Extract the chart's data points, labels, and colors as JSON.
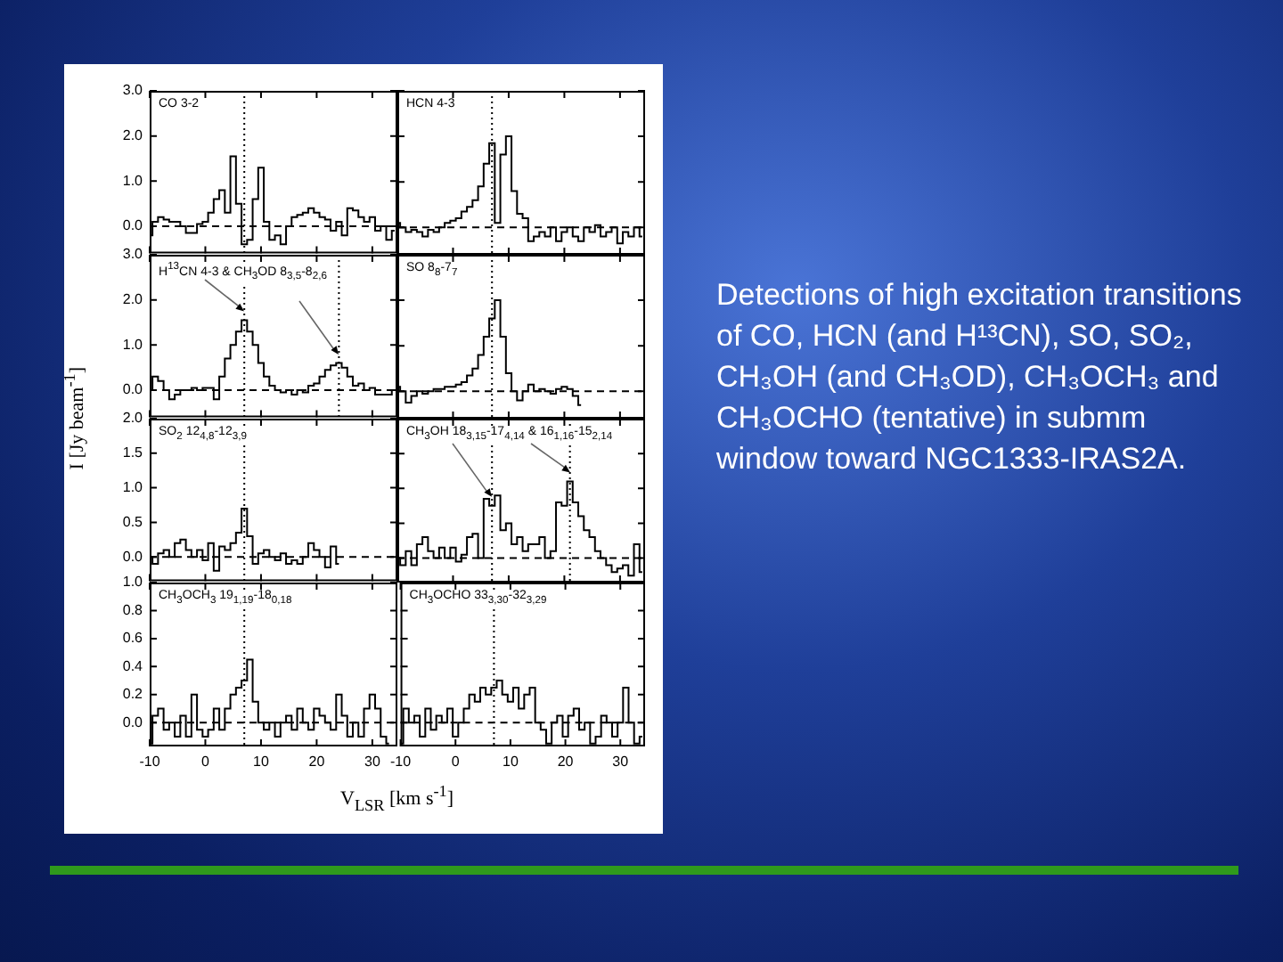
{
  "chart_data": [
    {
      "type": "step",
      "title": "CO 3-2",
      "color": "#000000",
      "tick_labels": "y",
      "xlim": [
        -10,
        34.5
      ],
      "xticks": [
        -10,
        0,
        10,
        20,
        30
      ],
      "ylim": [
        -0.6,
        3.0
      ],
      "yticks": [
        {
          "value": 0,
          "label": "0.0"
        },
        {
          "value": 1,
          "label": "1.0"
        },
        {
          "value": 2,
          "label": "2.0"
        },
        {
          "value": 3,
          "label": "3.0"
        }
      ],
      "ref_lines": [
        {
          "axis": "x",
          "value": 7,
          "line_style": "dotted",
          "color": "#000000"
        },
        {
          "axis": "y",
          "value": 0,
          "line_style": "dashed",
          "color": "#000000"
        }
      ],
      "x": [
        -10,
        -9,
        -8,
        -7,
        -6,
        -5,
        -4,
        -3,
        -2,
        -1,
        0,
        1,
        2,
        3,
        4,
        5,
        6,
        7,
        8,
        9,
        10,
        11,
        12,
        13,
        14,
        15,
        16,
        17,
        18,
        19,
        20,
        21,
        22,
        23,
        24,
        25,
        26,
        27,
        28,
        29,
        30,
        31,
        32,
        33,
        34
      ],
      "values": [
        -0.2,
        0.1,
        0.2,
        0.15,
        0.1,
        0.1,
        0.0,
        -0.15,
        -0.15,
        0.05,
        0.1,
        0.3,
        0.6,
        0.8,
        0.3,
        1.55,
        0.5,
        -0.4,
        -0.3,
        0.6,
        1.3,
        0.1,
        -0.3,
        -0.2,
        -0.4,
        0.0,
        0.2,
        0.25,
        0.3,
        0.4,
        0.3,
        0.2,
        0.15,
        -0.1,
        0.1,
        -0.2,
        0.4,
        0.35,
        0.2,
        0.1,
        0.2,
        -0.1,
        0.0,
        -0.3,
        -0.1
      ]
    },
    {
      "type": "step",
      "title": "HCN 4-3",
      "color": "#000000",
      "tick_labels": false,
      "xlim": [
        -10,
        34.5
      ],
      "xticks": [
        -10,
        0,
        10,
        20,
        30
      ],
      "ylim": [
        -0.6,
        3.0
      ],
      "yticks": [
        {
          "value": 0,
          "label": null
        },
        {
          "value": 1,
          "label": null
        },
        {
          "value": 2,
          "label": null
        },
        {
          "value": 3,
          "label": null
        }
      ],
      "ref_lines": [
        {
          "axis": "x",
          "value": 7,
          "line_style": "dotted",
          "color": "#000000"
        },
        {
          "axis": "y",
          "value": 0,
          "line_style": "dashed",
          "color": "#000000"
        }
      ],
      "x": [
        -10,
        -9,
        -8,
        -7,
        -6,
        -5,
        -4,
        -3,
        -2,
        -1,
        0,
        1,
        2,
        3,
        4,
        5,
        6,
        7,
        8,
        9,
        10,
        11,
        12,
        13,
        14,
        15,
        16,
        17,
        18,
        19,
        20,
        21,
        22,
        23,
        24,
        25,
        26,
        27,
        28,
        29,
        30,
        31,
        32,
        33,
        34
      ],
      "values": [
        0.1,
        0.0,
        -0.1,
        -0.05,
        -0.1,
        -0.2,
        -0.05,
        -0.1,
        0.0,
        0.1,
        0.15,
        0.2,
        0.35,
        0.45,
        0.6,
        0.9,
        1.4,
        1.85,
        0.1,
        1.6,
        2.0,
        0.8,
        0.3,
        0.2,
        -0.3,
        -0.2,
        -0.1,
        -0.2,
        0.0,
        -0.3,
        -0.1,
        0.0,
        -0.2,
        -0.3,
        0.0,
        -0.1,
        0.05,
        -0.2,
        -0.1,
        0.0,
        -0.35,
        -0.1,
        -0.2,
        0.0,
        -0.2
      ]
    },
    {
      "type": "step",
      "title": "H$^{13}$CN 4-3 & CH$_{3}$OD 8$_{3,5}$-8$_{2,6}$",
      "color": "#000000",
      "tick_labels": "y",
      "xlim": [
        -10,
        34.5
      ],
      "xticks": [
        -10,
        0,
        10,
        20,
        30
      ],
      "ylim": [
        -0.6,
        3.0
      ],
      "yticks": [
        {
          "value": 0,
          "label": "0.0"
        },
        {
          "value": 1,
          "label": "1.0"
        },
        {
          "value": 2,
          "label": "2.0"
        },
        {
          "value": 3,
          "label": "3.0"
        }
      ],
      "ref_lines": [
        {
          "axis": "x",
          "value": 7,
          "line_style": "dotted",
          "color": "#000000"
        },
        {
          "axis": "x",
          "value": 24,
          "line_style": "dotted",
          "color": "#000000"
        },
        {
          "axis": "y",
          "value": 0,
          "line_style": "dashed",
          "color": "#000000"
        }
      ],
      "x": [
        -10,
        -9,
        -8,
        -7,
        -6,
        -5,
        -4,
        -3,
        -2,
        -1,
        0,
        1,
        2,
        3,
        4,
        5,
        6,
        7,
        8,
        9,
        10,
        11,
        12,
        13,
        14,
        15,
        16,
        17,
        18,
        19,
        20,
        21,
        22,
        23,
        24,
        25,
        26,
        27,
        28,
        29,
        30,
        31,
        32,
        33,
        34
      ],
      "values": [
        0.0,
        0.3,
        0.2,
        0.0,
        -0.2,
        -0.1,
        0.0,
        0.0,
        0.05,
        0.0,
        0.05,
        0.05,
        -0.2,
        0.3,
        0.7,
        1.0,
        1.3,
        1.55,
        1.3,
        1.0,
        0.6,
        0.3,
        0.1,
        0.0,
        -0.05,
        0.0,
        -0.1,
        0.0,
        -0.05,
        0.1,
        0.15,
        0.3,
        0.45,
        0.55,
        0.6,
        0.5,
        0.3,
        0.1,
        0.15,
        0.0,
        0.05,
        -0.1,
        -0.1,
        -0.1,
        0.0
      ]
    },
    {
      "type": "step",
      "title": "SO 8$_{8}$-7$_{7}$",
      "color": "#000000",
      "tick_labels": false,
      "xlim": [
        -10,
        34.5
      ],
      "xticks": [
        -10,
        0,
        10,
        20,
        30
      ],
      "ylim": [
        -0.6,
        3.0
      ],
      "yticks": [
        {
          "value": 0,
          "label": null
        },
        {
          "value": 1,
          "label": null
        },
        {
          "value": 2,
          "label": null
        },
        {
          "value": 3,
          "label": null
        }
      ],
      "ref_lines": [
        {
          "axis": "x",
          "value": 7,
          "line_style": "dotted",
          "color": "#000000"
        },
        {
          "axis": "y",
          "value": 0,
          "line_style": "dashed",
          "color": "#000000"
        }
      ],
      "x": [
        -10,
        -9,
        -8,
        -7,
        -6,
        -5,
        -4,
        -3,
        -2,
        -1,
        0,
        1,
        2,
        3,
        4,
        5,
        6,
        7,
        8,
        9,
        10,
        11,
        12,
        13,
        14,
        15,
        16,
        17,
        18,
        19,
        20,
        21,
        22,
        23
      ],
      "values": [
        0.1,
        0.0,
        -0.25,
        -0.1,
        0.0,
        -0.05,
        0.0,
        0.05,
        0.05,
        0.1,
        0.1,
        0.15,
        0.2,
        0.35,
        0.5,
        0.8,
        1.2,
        1.6,
        2.0,
        1.2,
        0.4,
        0.0,
        -0.2,
        0.0,
        0.15,
        0.0,
        0.05,
        0.0,
        -0.05,
        0.05,
        0.1,
        0.05,
        -0.1,
        -0.3
      ]
    },
    {
      "type": "step",
      "title": "SO$_{2}$ 12$_{4,8}$-12$_{3,9}$",
      "ylabel": "I [Jy beam$^{-1}$]",
      "color": "#000000",
      "tick_labels": "y",
      "xlim": [
        -10,
        34.5
      ],
      "xticks": [
        -10,
        0,
        10,
        20,
        30
      ],
      "ylim": [
        -0.35,
        2.0
      ],
      "yticks": [
        {
          "value": 0,
          "label": "0.0"
        },
        {
          "value": 0.5,
          "label": "0.5"
        },
        {
          "value": 1,
          "label": "1.0"
        },
        {
          "value": 1.5,
          "label": "1.5"
        },
        {
          "value": 2,
          "label": "2.0"
        }
      ],
      "ref_lines": [
        {
          "axis": "x",
          "value": 7,
          "line_style": "dotted",
          "color": "#000000"
        },
        {
          "axis": "y",
          "value": 0,
          "line_style": "dashed",
          "color": "#000000"
        }
      ],
      "x": [
        -10,
        -9,
        -8,
        -7,
        -6,
        -5,
        -4,
        -3,
        -2,
        -1,
        0,
        1,
        2,
        3,
        4,
        5,
        6,
        7,
        8,
        9,
        10,
        11,
        12,
        13,
        14,
        15,
        16,
        17,
        18,
        19,
        20,
        21,
        22,
        23,
        24
      ],
      "values": [
        0.0,
        -0.1,
        0.05,
        0.1,
        0.0,
        0.2,
        0.25,
        0.1,
        0.0,
        0.1,
        -0.05,
        0.2,
        -0.2,
        0.15,
        0.1,
        0.2,
        0.35,
        0.7,
        0.3,
        -0.1,
        0.05,
        0.1,
        0.0,
        -0.05,
        0.05,
        -0.1,
        -0.05,
        -0.1,
        0.0,
        0.2,
        0.1,
        0.0,
        -0.15,
        0.15,
        -0.1
      ]
    },
    {
      "type": "step",
      "title": "CH$_{3}$OH 18$_{3,15}$-17$_{4,14}$ & 16$_{1,16}$-15$_{2,14}$",
      "color": "#000000",
      "tick_labels": false,
      "xlim": [
        -10,
        34.5
      ],
      "xticks": [
        -10,
        0,
        10,
        20,
        30
      ],
      "ylim": [
        -0.35,
        2.0
      ],
      "yticks": [
        {
          "value": 0,
          "label": null
        },
        {
          "value": 0.5,
          "label": null
        },
        {
          "value": 1,
          "label": null
        },
        {
          "value": 1.5,
          "label": null
        },
        {
          "value": 2,
          "label": null
        }
      ],
      "ref_lines": [
        {
          "axis": "x",
          "value": 7,
          "line_style": "dotted",
          "color": "#000000"
        },
        {
          "axis": "x",
          "value": 21,
          "line_style": "dotted",
          "color": "#000000"
        },
        {
          "axis": "y",
          "value": 0,
          "line_style": "dashed",
          "color": "#000000"
        }
      ],
      "x": [
        -10,
        -9,
        -8,
        -7,
        -6,
        -5,
        -4,
        -3,
        -2,
        -1,
        0,
        1,
        2,
        3,
        4,
        5,
        6,
        7,
        8,
        9,
        10,
        11,
        12,
        13,
        14,
        15,
        16,
        17,
        18,
        19,
        20,
        21,
        22,
        23,
        24,
        25,
        26,
        27,
        28,
        29,
        30,
        31,
        32,
        33,
        34
      ],
      "values": [
        0.0,
        -0.1,
        0.1,
        -0.1,
        0.2,
        0.3,
        0.1,
        0.0,
        0.15,
        0.0,
        0.15,
        -0.05,
        0.05,
        0.3,
        0.35,
        0.0,
        0.85,
        0.75,
        0.9,
        0.4,
        0.5,
        0.2,
        0.3,
        0.1,
        0.2,
        0.2,
        0.3,
        0.0,
        0.1,
        0.8,
        0.75,
        1.1,
        0.8,
        0.6,
        0.4,
        0.3,
        0.1,
        0.0,
        -0.1,
        -0.2,
        -0.15,
        -0.1,
        -0.25,
        0.2,
        -0.2
      ]
    },
    {
      "type": "step",
      "title": "CH$_{3}$OCH$_{3}$ 19$_{1,19}$-18$_{0,18}$",
      "xlabel": "V$_{LSR}$ [km s$^{-1}$]",
      "color": "#000000",
      "xlim": [
        -10,
        34.5
      ],
      "xticks": [
        -10,
        0,
        10,
        20,
        30
      ],
      "ylim": [
        -0.17,
        1.0
      ],
      "yticks": [
        {
          "value": 0,
          "label": "0.0"
        },
        {
          "value": 0.2,
          "label": "0.2"
        },
        {
          "value": 0.4,
          "label": "0.4"
        },
        {
          "value": 0.6,
          "label": "0.6"
        },
        {
          "value": 0.8,
          "label": "0.8"
        },
        {
          "value": 1,
          "label": "1.0"
        }
      ],
      "ref_lines": [
        {
          "axis": "x",
          "value": 7,
          "line_style": "dotted",
          "color": "#000000"
        },
        {
          "axis": "y",
          "value": 0,
          "line_style": "dashed",
          "color": "#000000"
        }
      ],
      "x": [
        -10,
        -9,
        -8,
        -7,
        -6,
        -5,
        -4,
        -3,
        -2,
        -1,
        0,
        1,
        2,
        3,
        4,
        5,
        6,
        7,
        8,
        9,
        10,
        11,
        12,
        13,
        14,
        15,
        16,
        17,
        18,
        19,
        20,
        21,
        22,
        23,
        24,
        25,
        26,
        27,
        28,
        29,
        30,
        31,
        32,
        33
      ],
      "values": [
        -0.15,
        0.05,
        0.1,
        -0.05,
        0.0,
        -0.1,
        0.05,
        -0.1,
        0.2,
        -0.05,
        -0.1,
        -0.05,
        0.1,
        -0.05,
        0.1,
        0.2,
        0.25,
        0.3,
        0.45,
        0.15,
        0.0,
        -0.05,
        0.0,
        -0.1,
        0.0,
        0.05,
        -0.05,
        0.1,
        0.0,
        -0.05,
        0.1,
        0.05,
        0.0,
        -0.05,
        0.2,
        0.05,
        -0.1,
        0.0,
        -0.1,
        0.1,
        0.2,
        0.1,
        -0.1,
        -0.15
      ]
    },
    {
      "type": "step",
      "title": "CH$_{3}$OCHO 33$_{3,30}$-32$_{3,29}$",
      "color": "#000000",
      "tick_labels": "x",
      "xlim": [
        -10,
        34.5
      ],
      "xticks": [
        -10,
        0,
        10,
        20,
        30
      ],
      "ylim": [
        -0.17,
        1.0
      ],
      "yticks": [
        {
          "value": 0,
          "label": null
        },
        {
          "value": 0.2,
          "label": null
        },
        {
          "value": 0.4,
          "label": null
        },
        {
          "value": 0.6,
          "label": null
        },
        {
          "value": 0.8,
          "label": null
        },
        {
          "value": 1,
          "label": null
        }
      ],
      "ref_lines": [
        {
          "axis": "x",
          "value": 7,
          "line_style": "dotted",
          "color": "#000000"
        },
        {
          "axis": "y",
          "value": 0,
          "line_style": "dashed",
          "color": "#000000"
        }
      ],
      "x": [
        -10,
        -9,
        -8,
        -7,
        -6,
        -5,
        -4,
        -3,
        -2,
        -1,
        0,
        1,
        2,
        3,
        4,
        5,
        6,
        7,
        8,
        9,
        10,
        11,
        12,
        13,
        14,
        15,
        16,
        17,
        18,
        19,
        20,
        21,
        22,
        23,
        24,
        25,
        26,
        27,
        28,
        29,
        30,
        31,
        32,
        33,
        34
      ],
      "values": [
        -0.15,
        0.1,
        0.0,
        0.05,
        -0.1,
        0.1,
        -0.05,
        0.05,
        0.0,
        0.1,
        -0.1,
        0.0,
        0.1,
        0.2,
        0.15,
        0.25,
        0.2,
        0.25,
        0.3,
        0.2,
        0.15,
        0.25,
        0.1,
        0.2,
        0.25,
        0.0,
        -0.05,
        -0.15,
        0.0,
        0.05,
        -0.1,
        0.05,
        0.1,
        -0.05,
        0.0,
        -0.15,
        -0.1,
        0.05,
        0.0,
        -0.1,
        0.0,
        0.25,
        0.0,
        -0.15,
        -0.1
      ]
    },
    {
      "type": "other",
      "annotations": [
        "Detections of high excitation transitions of CO, HCN (and H¹³CN), SO, SO₂, CH₃OH (and CH₃OD), CH₃OCH₃ and CH₃OCHO (tentative) in submm window toward NGC1333-IRAS2A."
      ]
    }
  ]
}
